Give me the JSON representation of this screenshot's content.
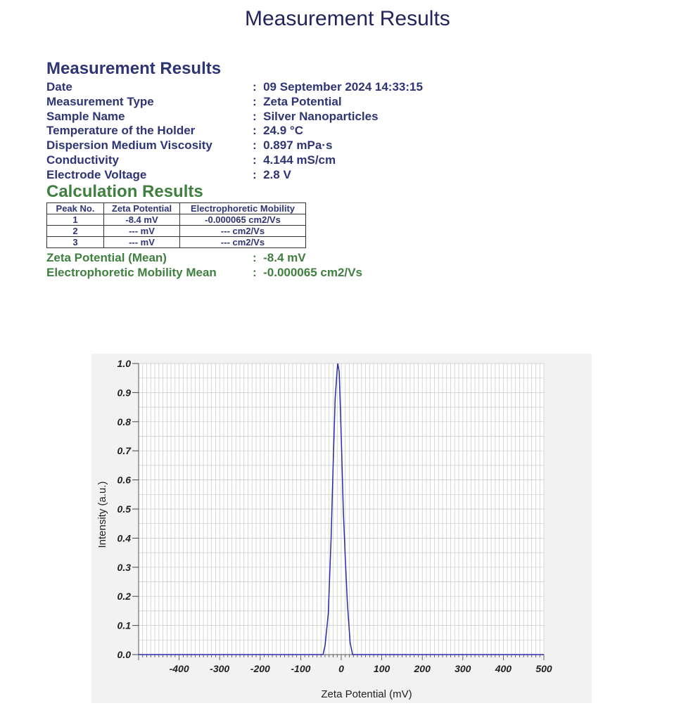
{
  "page_title": "Measurement Results",
  "measurement": {
    "title": "Measurement Results",
    "fields": [
      {
        "label": "Date",
        "value": ":  09 September 2024 14:33:15"
      },
      {
        "label": "Measurement Type",
        "value": ":  Zeta Potential"
      },
      {
        "label": "Sample Name",
        "value": ":  Silver Nanoparticles"
      },
      {
        "label": "Temperature of the Holder",
        "value": ":  24.9 °C"
      },
      {
        "label": "Dispersion Medium Viscosity",
        "value": ":  0.897 mPa·s"
      },
      {
        "label": "Conductivity",
        "value": ":  4.144 mS/cm"
      },
      {
        "label": "Electrode Voltage",
        "value": ":  2.8 V"
      }
    ]
  },
  "calculation": {
    "title": "Calculation Results",
    "table": {
      "headers": [
        "Peak No.",
        "Zeta Potential",
        "Electrophoretic Mobility"
      ],
      "rows": [
        [
          "1",
          "-8.4 mV",
          "-0.000065 cm2/Vs"
        ],
        [
          "2",
          "--- mV",
          "--- cm2/Vs"
        ],
        [
          "3",
          "--- mV",
          "--- cm2/Vs"
        ]
      ]
    },
    "summary": [
      {
        "label": "Zeta Potential (Mean)",
        "value": ":  -8.4 mV"
      },
      {
        "label": "Electrophoretic Mobility Mean",
        "value": ":  -0.000065 cm2/Vs"
      }
    ]
  },
  "chart_data": {
    "type": "line",
    "xlabel": "Zeta Potential (mV)",
    "ylabel": "Intensity (a.u.)",
    "xlim": [
      -500,
      500
    ],
    "ylim": [
      0,
      1.0
    ],
    "x_ticks": [
      -400,
      -300,
      -200,
      -100,
      0,
      100,
      200,
      300,
      400,
      500
    ],
    "y_ticks": [
      0.0,
      0.1,
      0.2,
      0.3,
      0.4,
      0.5,
      0.6,
      0.7,
      0.8,
      0.9,
      1.0
    ],
    "y_tick_labels": [
      "0.0",
      "0.1",
      "0.2",
      "0.3",
      "0.4",
      "0.5",
      "0.6",
      "0.7",
      "0.8",
      "0.9",
      "1.0"
    ],
    "grid": true,
    "line_color": "#2b2ba8",
    "series": [
      {
        "x": [
          -500,
          -60,
          -45,
          -40,
          -32,
          -25,
          -20,
          -15,
          -10,
          -8.4,
          -5,
          0,
          5,
          10,
          15,
          22,
          28,
          500
        ],
        "y": [
          0,
          0,
          0.0,
          0.03,
          0.14,
          0.4,
          0.65,
          0.88,
          0.98,
          1.0,
          0.97,
          0.75,
          0.5,
          0.33,
          0.18,
          0.04,
          0,
          0
        ]
      }
    ]
  }
}
